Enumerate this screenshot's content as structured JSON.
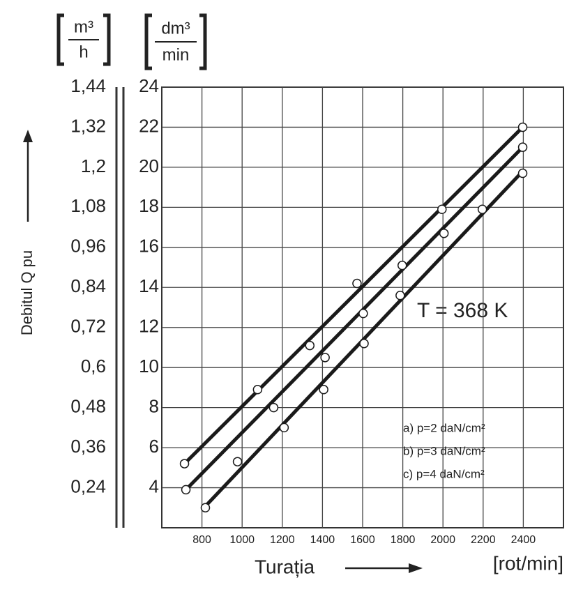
{
  "chart_data": {
    "type": "scatter-fit",
    "y_label": "Debitul Q pu",
    "x_label": "Turația",
    "x_unit": "[rot/min]",
    "y_unit": {
      "numerator": "dm³",
      "denominator": "min"
    },
    "y2_unit": {
      "numerator": "m³",
      "denominator": "h"
    },
    "annotation": "T = 368 K",
    "xlim": [
      600,
      2600
    ],
    "xticks": [
      800,
      1000,
      1200,
      1400,
      1600,
      1800,
      2000,
      2200,
      2400
    ],
    "ylim": [
      2,
      24
    ],
    "yticks": [
      4,
      6,
      8,
      10,
      12,
      14,
      16,
      18,
      20,
      22,
      24
    ],
    "y2lim": [
      0.12,
      1.44
    ],
    "y2ticks": [
      {
        "value": 0.24,
        "label": "0,24"
      },
      {
        "value": 0.36,
        "label": "0,36"
      },
      {
        "value": 0.48,
        "label": "0,48"
      },
      {
        "value": 0.6,
        "label": "0,6"
      },
      {
        "value": 0.72,
        "label": "0,72"
      },
      {
        "value": 0.84,
        "label": "0,84"
      },
      {
        "value": 0.96,
        "label": "0,96"
      },
      {
        "value": 1.08,
        "label": "1,08"
      },
      {
        "value": 1.2,
        "label": "1,2"
      },
      {
        "value": 1.32,
        "label": "1,32"
      },
      {
        "value": 1.44,
        "label": "1,44"
      }
    ],
    "grid": true,
    "series": [
      {
        "name": "a) p=2 daN/cm²",
        "color": "#1a1a1a",
        "x": [
          713,
          1077,
          1337,
          1572,
          1995,
          2397
        ],
        "values": [
          5.2,
          8.9,
          11.1,
          14.2,
          17.9,
          22.0
        ],
        "fit_x": [
          713,
          2397
        ],
        "fit_values": [
          5.2,
          22.0
        ]
      },
      {
        "name": "b) p=3 daN/cm²",
        "color": "#1a1a1a",
        "x": [
          720,
          977,
          1157,
          1413,
          1603,
          1797,
          2005,
          2397
        ],
        "values": [
          3.9,
          5.3,
          8.0,
          10.5,
          12.7,
          15.1,
          16.7,
          21.0
        ],
        "fit_x": [
          720,
          2397
        ],
        "fit_values": [
          3.9,
          21.0
        ]
      },
      {
        "name": "c) p=4 daN/cm²",
        "color": "#1a1a1a",
        "x": [
          817,
          1209,
          1406,
          1607,
          1787,
          2196,
          2397
        ],
        "values": [
          3.0,
          7.0,
          8.9,
          11.2,
          13.6,
          17.9,
          19.7
        ],
        "fit_x": [
          810,
          2397
        ],
        "fit_values": [
          3.0,
          19.8
        ]
      }
    ]
  }
}
